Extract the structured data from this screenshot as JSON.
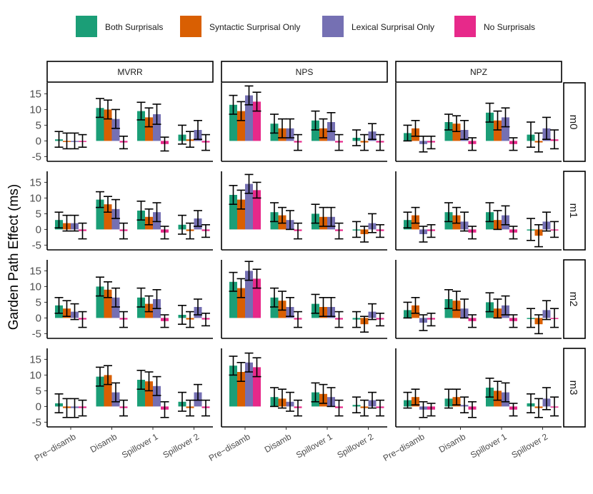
{
  "chart_data": {
    "type": "bar",
    "ylabel": "Garden Path Effect (ms)",
    "xlabel": "",
    "ylim": [
      -6.5,
      18.5
    ],
    "yticks": [
      -5,
      0,
      5,
      10,
      15
    ],
    "categories": [
      "Pre−disamb",
      "Disamb",
      "Spillover 1",
      "Spillover 2"
    ],
    "columns": [
      "MVRR",
      "NPS",
      "NPZ"
    ],
    "rows": [
      "m0",
      "m1",
      "m2",
      "m3"
    ],
    "legend_position": "top",
    "series": [
      {
        "name": "Both Surprisals",
        "color": "#1b9e77"
      },
      {
        "name": "Syntactic Surprisal Only",
        "color": "#d95f02"
      },
      {
        "name": "Lexical Surprisal Only",
        "color": "#7570b3"
      },
      {
        "name": "No Surprisals",
        "color": "#e7298a"
      }
    ],
    "panels": [
      {
        "row": "m0",
        "col": "MVRR",
        "values": [
          [
            0.5,
            0.0,
            0.0,
            0.0
          ],
          [
            10.5,
            10.0,
            7.0,
            -0.5
          ],
          [
            9.5,
            7.5,
            8.5,
            -1.0
          ],
          [
            2.0,
            0.5,
            3.5,
            -0.5
          ]
        ],
        "errors": [
          [
            2.5,
            2.5,
            2.5,
            2.0
          ],
          [
            3.0,
            3.0,
            3.0,
            2.0
          ],
          [
            2.8,
            3.0,
            3.2,
            2.2
          ],
          [
            3.0,
            2.5,
            3.0,
            2.5
          ]
        ]
      },
      {
        "row": "m0",
        "col": "NPS",
        "values": [
          [
            11.5,
            9.5,
            14.5,
            12.5
          ],
          [
            5.5,
            4.0,
            4.0,
            -0.5
          ],
          [
            6.5,
            4.0,
            6.0,
            -0.5
          ],
          [
            1.0,
            -0.5,
            3.0,
            -0.5
          ]
        ],
        "errors": [
          [
            3.0,
            3.0,
            3.0,
            3.0
          ],
          [
            3.0,
            3.0,
            3.0,
            2.5
          ],
          [
            3.0,
            3.0,
            3.0,
            2.5
          ],
          [
            2.5,
            2.5,
            2.5,
            2.5
          ]
        ]
      },
      {
        "row": "m0",
        "col": "NPZ",
        "values": [
          [
            2.5,
            4.0,
            -1.0,
            -0.5
          ],
          [
            6.0,
            5.5,
            3.5,
            -1.0
          ],
          [
            9.0,
            6.5,
            7.5,
            -1.0
          ],
          [
            2.0,
            -0.5,
            4.0,
            0.5
          ]
        ],
        "errors": [
          [
            2.5,
            2.5,
            2.5,
            2.0
          ],
          [
            2.5,
            2.5,
            3.0,
            2.0
          ],
          [
            3.0,
            3.0,
            3.0,
            2.0
          ],
          [
            4.0,
            3.0,
            3.5,
            3.0
          ]
        ]
      },
      {
        "row": "m1",
        "col": "MVRR",
        "values": [
          [
            3.0,
            2.0,
            2.0,
            -0.5
          ],
          [
            9.5,
            8.0,
            6.5,
            -0.5
          ],
          [
            6.0,
            4.0,
            5.5,
            -1.0
          ],
          [
            1.5,
            -0.5,
            3.5,
            -0.5
          ]
        ],
        "errors": [
          [
            2.5,
            2.5,
            2.5,
            2.5
          ],
          [
            2.5,
            2.5,
            3.0,
            2.5
          ],
          [
            3.0,
            2.5,
            3.0,
            2.0
          ],
          [
            3.0,
            2.5,
            2.5,
            2.0
          ]
        ]
      },
      {
        "row": "m1",
        "col": "NPS",
        "values": [
          [
            11.0,
            9.5,
            14.5,
            12.5
          ],
          [
            5.5,
            4.5,
            3.0,
            -0.5
          ],
          [
            5.0,
            4.0,
            4.0,
            -0.5
          ],
          [
            0.0,
            -1.5,
            2.0,
            -0.5
          ]
        ],
        "errors": [
          [
            3.0,
            3.0,
            3.0,
            2.5
          ],
          [
            3.0,
            2.5,
            3.0,
            2.5
          ],
          [
            3.0,
            3.0,
            3.0,
            2.5
          ],
          [
            2.5,
            2.5,
            3.0,
            2.0
          ]
        ]
      },
      {
        "row": "m1",
        "col": "NPZ",
        "values": [
          [
            3.0,
            4.5,
            -1.5,
            -0.5
          ],
          [
            5.5,
            4.5,
            2.5,
            -1.0
          ],
          [
            5.5,
            3.0,
            4.5,
            -1.0
          ],
          [
            0.0,
            -2.0,
            2.5,
            0.0
          ]
        ],
        "errors": [
          [
            2.5,
            2.5,
            2.5,
            2.0
          ],
          [
            3.0,
            2.5,
            3.0,
            2.0
          ],
          [
            3.0,
            3.0,
            3.0,
            2.0
          ],
          [
            3.5,
            3.5,
            3.0,
            2.5
          ]
        ]
      },
      {
        "row": "m2",
        "col": "MVRR",
        "values": [
          [
            4.0,
            3.0,
            2.0,
            -0.5
          ],
          [
            10.0,
            9.0,
            6.5,
            -0.5
          ],
          [
            6.5,
            4.5,
            6.0,
            -1.0
          ],
          [
            1.0,
            -0.5,
            3.5,
            -0.5
          ]
        ],
        "errors": [
          [
            2.5,
            2.5,
            2.5,
            2.5
          ],
          [
            3.0,
            2.5,
            3.0,
            2.5
          ],
          [
            3.0,
            2.5,
            3.0,
            2.0
          ],
          [
            3.0,
            2.5,
            2.5,
            2.0
          ]
        ]
      },
      {
        "row": "m2",
        "col": "NPS",
        "values": [
          [
            11.5,
            9.5,
            15.0,
            12.5
          ],
          [
            6.5,
            5.5,
            3.5,
            -0.5
          ],
          [
            4.5,
            3.5,
            3.5,
            -0.5
          ],
          [
            -0.5,
            -2.0,
            2.0,
            -0.5
          ]
        ],
        "errors": [
          [
            3.0,
            3.0,
            3.0,
            3.0
          ],
          [
            3.0,
            3.0,
            3.0,
            2.5
          ],
          [
            3.0,
            3.0,
            3.0,
            2.5
          ],
          [
            2.5,
            2.5,
            2.5,
            2.0
          ]
        ]
      },
      {
        "row": "m2",
        "col": "NPZ",
        "values": [
          [
            2.5,
            4.0,
            -1.5,
            -0.5
          ],
          [
            6.0,
            5.5,
            3.0,
            -1.0
          ],
          [
            5.0,
            3.0,
            4.0,
            -1.0
          ],
          [
            0.0,
            -2.0,
            2.5,
            0.0
          ]
        ],
        "errors": [
          [
            2.5,
            2.5,
            2.5,
            2.0
          ],
          [
            3.0,
            3.0,
            3.0,
            2.0
          ],
          [
            3.0,
            3.0,
            3.0,
            2.0
          ],
          [
            3.0,
            3.0,
            3.0,
            3.0
          ]
        ]
      },
      {
        "row": "m3",
        "col": "MVRR",
        "values": [
          [
            1.0,
            -0.5,
            -0.5,
            -0.5
          ],
          [
            9.5,
            10.0,
            4.5,
            -0.5
          ],
          [
            8.5,
            8.0,
            6.5,
            -1.0
          ],
          [
            1.5,
            -0.5,
            4.5,
            -0.5
          ]
        ],
        "errors": [
          [
            3.0,
            3.0,
            3.0,
            2.5
          ],
          [
            3.0,
            3.0,
            3.0,
            2.5
          ],
          [
            3.0,
            3.0,
            3.0,
            2.5
          ],
          [
            3.0,
            2.5,
            2.5,
            2.5
          ]
        ]
      },
      {
        "row": "m3",
        "col": "NPS",
        "values": [
          [
            13.0,
            11.0,
            14.0,
            12.5
          ],
          [
            3.0,
            2.5,
            1.5,
            -0.5
          ],
          [
            4.5,
            4.0,
            3.0,
            -0.5
          ],
          [
            0.5,
            -0.5,
            2.0,
            -0.5
          ]
        ],
        "errors": [
          [
            3.0,
            3.0,
            3.0,
            3.0
          ],
          [
            3.0,
            3.0,
            3.0,
            2.5
          ],
          [
            3.0,
            3.0,
            3.0,
            2.5
          ],
          [
            2.5,
            2.5,
            2.5,
            2.5
          ]
        ]
      },
      {
        "row": "m3",
        "col": "NPZ",
        "values": [
          [
            2.0,
            3.0,
            -1.0,
            -1.0
          ],
          [
            2.5,
            3.0,
            0.5,
            -1.0
          ],
          [
            6.0,
            5.0,
            4.5,
            -1.0
          ],
          [
            1.0,
            -0.5,
            2.5,
            0.0
          ]
        ],
        "errors": [
          [
            2.5,
            2.5,
            2.5,
            2.0
          ],
          [
            3.0,
            2.5,
            2.5,
            2.5
          ],
          [
            3.0,
            3.0,
            3.0,
            2.0
          ],
          [
            3.0,
            3.0,
            3.5,
            3.0
          ]
        ]
      }
    ]
  }
}
